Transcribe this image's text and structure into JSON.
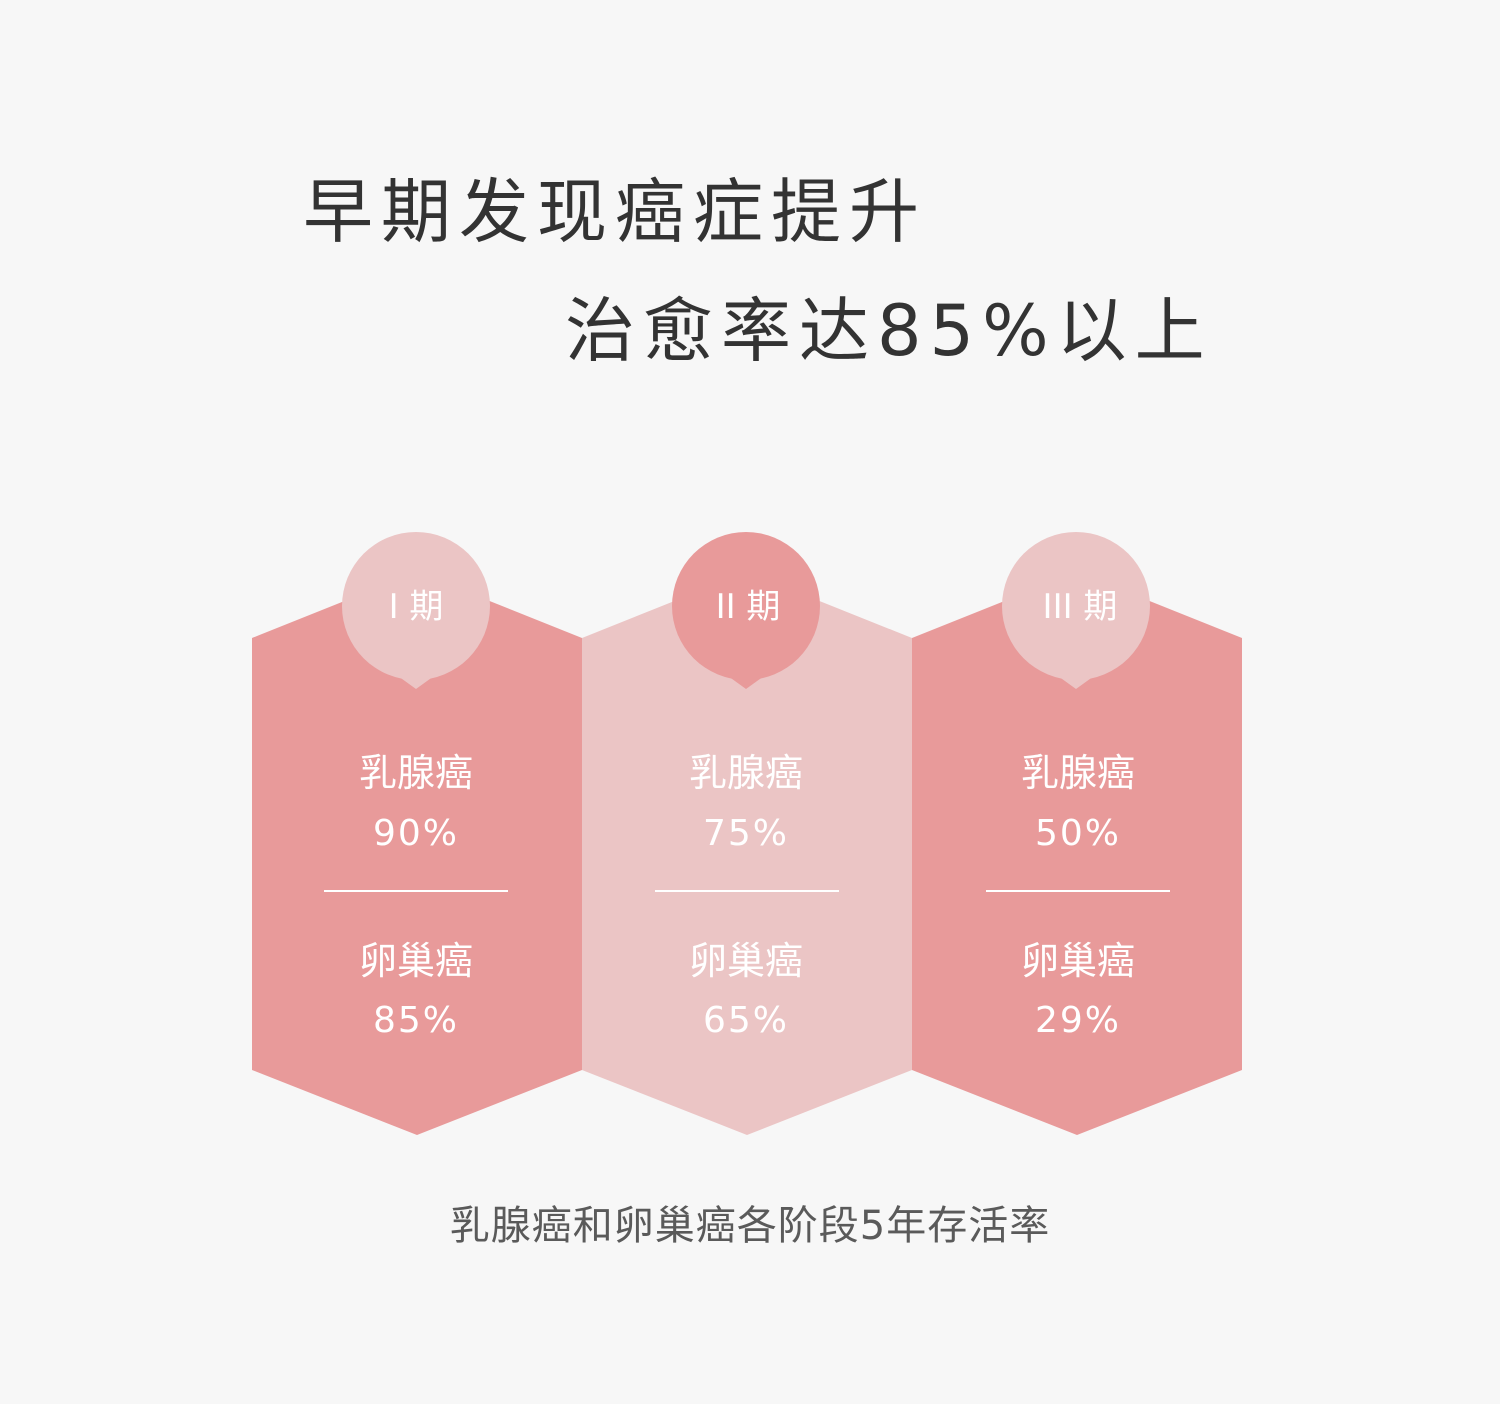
{
  "headline": {
    "line1": "早期发现癌症提升",
    "line2": "治愈率达85%以上"
  },
  "stages": [
    {
      "badge": "I 期",
      "panel_color": "#e89a9a",
      "badge_color": "#ebc5c5",
      "breast_label": "乳腺癌",
      "breast_rate": "90%",
      "ovarian_label": "卵巢癌",
      "ovarian_rate": "85%"
    },
    {
      "badge": "II 期",
      "panel_color": "#ebc5c5",
      "badge_color": "#e89a9a",
      "breast_label": "乳腺癌",
      "breast_rate": "75%",
      "ovarian_label": "卵巢癌",
      "ovarian_rate": "65%"
    },
    {
      "badge": "III 期",
      "panel_color": "#e89a9a",
      "badge_color": "#ebc5c5",
      "breast_label": "乳腺癌",
      "breast_rate": "50%",
      "ovarian_label": "卵巢癌",
      "ovarian_rate": "29%"
    }
  ],
  "caption": "乳腺癌和卵巢癌各阶段5年存活率",
  "colors": {
    "background": "#f7f7f7",
    "text_dark": "#333333",
    "text_caption": "#5a5a5a",
    "panel_white_text": "#ffffff"
  }
}
